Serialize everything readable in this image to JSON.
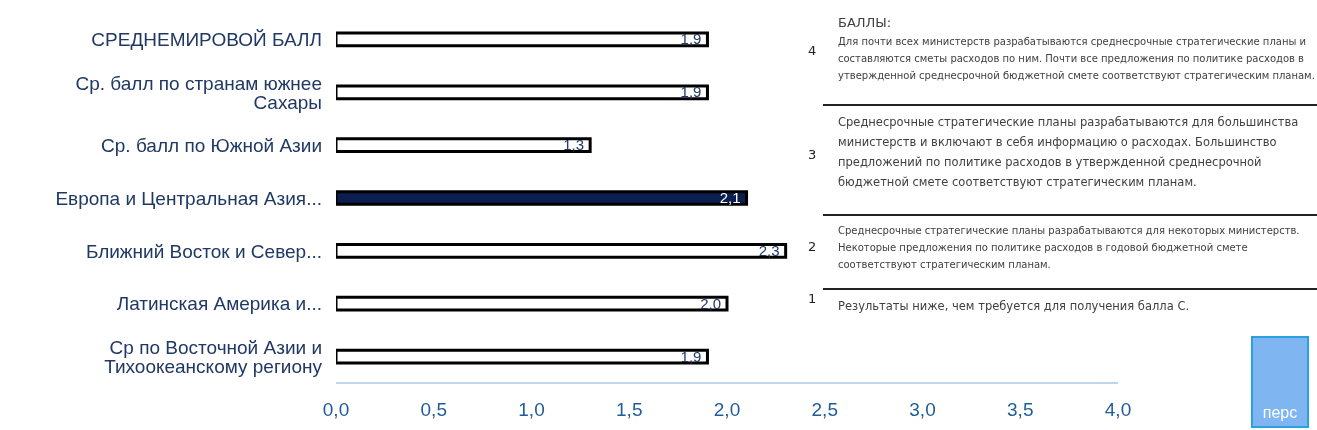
{
  "chart_data": {
    "type": "bar",
    "orientation": "horizontal",
    "categories": [
      "СРЕДНЕМИРОВОЙ БАЛЛ",
      "Ср. балл по странам южнее Сахары",
      "Ср. балл по Южной Азии",
      "Европа и Центральная Азия...",
      "Ближний Восток и Север...",
      "Латинская Америка и...",
      "Ср по Восточной Азии и Тихоокеанскому региону"
    ],
    "values": [
      1.9,
      1.9,
      1.3,
      2.1,
      2.3,
      2.0,
      1.9
    ],
    "colors": [
      "#ffffff",
      "#ffffff",
      "#ffffff",
      "#0a1f4f",
      "#ffffff",
      "#ffffff",
      "#ffffff"
    ],
    "value_labels": [
      "1,9",
      "1,9",
      "1,3",
      "2,1",
      "2,3",
      "2,0",
      "1,9"
    ],
    "xlim": [
      0,
      4
    ],
    "xticks": [
      {
        "value": 0,
        "label": "0,0"
      },
      {
        "value": 0.5,
        "label": "0,5"
      },
      {
        "value": 1,
        "label": "1,0"
      },
      {
        "value": 1.5,
        "label": "1,5"
      },
      {
        "value": 2,
        "label": "2,0"
      },
      {
        "value": 2.5,
        "label": "2,5"
      },
      {
        "value": 3,
        "label": "3,0"
      },
      {
        "value": 3.5,
        "label": "3,5"
      },
      {
        "value": 4,
        "label": "4,0"
      }
    ],
    "grid": false,
    "legend": false,
    "annotations": [
      "БАЛЛЫ:",
      "4",
      "Для почти всех министерств разрабатываются среднесрочные стратегические планы и составляются сметы расходов по ним. Почти все предложения по политике расходов в утвержденной среднесрочной бюджетной смете соответствуют стратегическим планам.",
      "3",
      "Среднесрочные стратегические планы разрабатываются для большинства министерств и включают в себя информацию о расходах. Большинство предложений по политике расходов в утвержденной среднесрочной бюджетной смете соответствуют стратегическим планам.",
      "2",
      "Среднесрочные стратегические планы разрабатываются для некоторых министерств. Некоторые предложения по политике расходов в годовой бюджетной смете соответствуют стратегическим планам.",
      "1",
      "Результаты ниже, чем требуется для получения балла С.",
      "перс"
    ]
  }
}
